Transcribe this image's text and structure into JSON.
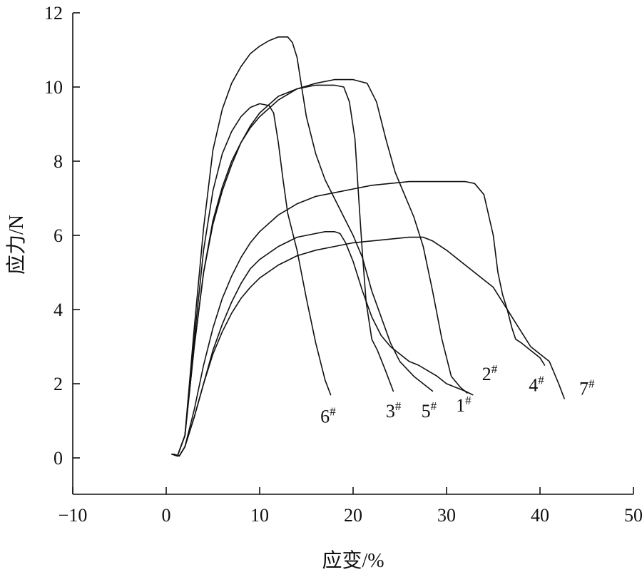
{
  "chart_data": {
    "type": "line",
    "xlabel": "应变/%",
    "ylabel": "应力/N",
    "xlim": [
      -10,
      50
    ],
    "ylim": [
      0,
      12
    ],
    "x_ticks": [
      -10,
      0,
      10,
      20,
      30,
      40,
      50
    ],
    "y_ticks": [
      0,
      2,
      4,
      6,
      8,
      10,
      12
    ],
    "x_tick_labels": [
      "−10",
      "0",
      "10",
      "20",
      "30",
      "40",
      "50"
    ],
    "y_tick_labels": [
      "0",
      "2",
      "4",
      "6",
      "8",
      "10",
      "12"
    ],
    "grid": false,
    "legend": "none",
    "line_color": "#111111",
    "series": [
      {
        "name": "6",
        "label_suffix": "#",
        "points": [
          [
            0.6,
            0.1
          ],
          [
            1.2,
            0.05
          ],
          [
            2.0,
            0.6
          ],
          [
            3.0,
            3.2
          ],
          [
            4.0,
            5.6
          ],
          [
            5.0,
            7.2
          ],
          [
            6.0,
            8.2
          ],
          [
            7.0,
            8.8
          ],
          [
            8.0,
            9.2
          ],
          [
            9.0,
            9.45
          ],
          [
            10.0,
            9.55
          ],
          [
            11.0,
            9.5
          ],
          [
            11.5,
            9.3
          ],
          [
            12.0,
            8.5
          ],
          [
            12.5,
            7.5
          ],
          [
            13.0,
            6.6
          ],
          [
            14.0,
            5.6
          ],
          [
            15.0,
            4.3
          ],
          [
            16.0,
            3.1
          ],
          [
            17.0,
            2.1
          ],
          [
            17.6,
            1.7
          ]
        ]
      },
      {
        "name": "3",
        "label_suffix": "#",
        "points": [
          [
            0.6,
            0.1
          ],
          [
            1.2,
            0.05
          ],
          [
            2.0,
            0.6
          ],
          [
            3.0,
            3.0
          ],
          [
            4.0,
            5.0
          ],
          [
            5.0,
            6.3
          ],
          [
            6.0,
            7.2
          ],
          [
            7.0,
            7.9
          ],
          [
            8.0,
            8.5
          ],
          [
            9.0,
            8.95
          ],
          [
            10.0,
            9.3
          ],
          [
            12.0,
            9.75
          ],
          [
            14.0,
            9.95
          ],
          [
            16.0,
            10.05
          ],
          [
            18.0,
            10.05
          ],
          [
            19.0,
            10.0
          ],
          [
            19.6,
            9.6
          ],
          [
            20.2,
            8.6
          ],
          [
            20.6,
            7.0
          ],
          [
            21.0,
            5.5
          ],
          [
            21.4,
            4.2
          ],
          [
            22.0,
            3.2
          ],
          [
            22.6,
            2.9
          ],
          [
            23.4,
            2.4
          ],
          [
            24.3,
            1.8
          ]
        ]
      },
      {
        "name": "5",
        "label_suffix": "#",
        "points": [
          [
            0.6,
            0.1
          ],
          [
            1.2,
            0.05
          ],
          [
            2.0,
            0.6
          ],
          [
            3.0,
            3.5
          ],
          [
            4.0,
            6.2
          ],
          [
            5.0,
            8.3
          ],
          [
            6.0,
            9.4
          ],
          [
            7.0,
            10.1
          ],
          [
            8.0,
            10.55
          ],
          [
            9.0,
            10.9
          ],
          [
            10.0,
            11.1
          ],
          [
            11.0,
            11.25
          ],
          [
            12.0,
            11.35
          ],
          [
            13.0,
            11.35
          ],
          [
            13.5,
            11.2
          ],
          [
            14.0,
            10.8
          ],
          [
            14.5,
            10.0
          ],
          [
            15.0,
            9.2
          ],
          [
            16.0,
            8.2
          ],
          [
            17.0,
            7.5
          ],
          [
            18.0,
            7.0
          ],
          [
            19.0,
            6.5
          ],
          [
            20.0,
            6.0
          ],
          [
            21.0,
            5.4
          ],
          [
            22.0,
            4.5
          ],
          [
            23.0,
            3.8
          ],
          [
            24.0,
            3.1
          ],
          [
            25.0,
            2.6
          ],
          [
            26.5,
            2.2
          ],
          [
            28.5,
            1.8
          ]
        ]
      },
      {
        "name": "1",
        "label_suffix": "#",
        "points": [
          [
            0.6,
            0.1
          ],
          [
            1.2,
            0.05
          ],
          [
            2.0,
            0.6
          ],
          [
            3.0,
            3.0
          ],
          [
            4.0,
            5.0
          ],
          [
            5.0,
            6.4
          ],
          [
            6.0,
            7.3
          ],
          [
            7.0,
            8.0
          ],
          [
            8.0,
            8.5
          ],
          [
            9.0,
            8.9
          ],
          [
            10.0,
            9.2
          ],
          [
            12.0,
            9.65
          ],
          [
            14.0,
            9.95
          ],
          [
            16.0,
            10.1
          ],
          [
            18.0,
            10.2
          ],
          [
            20.0,
            10.2
          ],
          [
            21.5,
            10.1
          ],
          [
            22.5,
            9.6
          ],
          [
            23.5,
            8.6
          ],
          [
            24.5,
            7.7
          ],
          [
            25.5,
            7.1
          ],
          [
            26.5,
            6.5
          ],
          [
            27.5,
            5.7
          ],
          [
            28.5,
            4.5
          ],
          [
            29.5,
            3.2
          ],
          [
            30.5,
            2.2
          ],
          [
            31.5,
            1.9
          ],
          [
            32.2,
            1.75
          ]
        ]
      },
      {
        "name": "2",
        "label_suffix": "#",
        "points": [
          [
            0.8,
            0.1
          ],
          [
            1.4,
            0.05
          ],
          [
            2.0,
            0.3
          ],
          [
            3.0,
            1.1
          ],
          [
            4.0,
            2.0
          ],
          [
            5.0,
            2.9
          ],
          [
            6.0,
            3.6
          ],
          [
            7.0,
            4.2
          ],
          [
            8.0,
            4.7
          ],
          [
            9.0,
            5.1
          ],
          [
            10.0,
            5.35
          ],
          [
            12.0,
            5.7
          ],
          [
            14.0,
            5.95
          ],
          [
            16.0,
            6.05
          ],
          [
            17.0,
            6.1
          ],
          [
            18.0,
            6.1
          ],
          [
            18.6,
            6.05
          ],
          [
            19.2,
            5.8
          ],
          [
            20.0,
            5.3
          ],
          [
            21.0,
            4.5
          ],
          [
            22.0,
            3.8
          ],
          [
            23.0,
            3.3
          ],
          [
            24.0,
            3.0
          ],
          [
            25.0,
            2.8
          ],
          [
            26.0,
            2.6
          ],
          [
            27.0,
            2.5
          ],
          [
            28.0,
            2.35
          ],
          [
            29.0,
            2.2
          ],
          [
            30.0,
            2.0
          ],
          [
            31.0,
            1.9
          ],
          [
            32.0,
            1.8
          ],
          [
            32.8,
            1.7
          ]
        ]
      },
      {
        "name": "4",
        "label_suffix": "#",
        "points": [
          [
            0.8,
            0.1
          ],
          [
            1.4,
            0.05
          ],
          [
            2.0,
            0.3
          ],
          [
            3.0,
            1.3
          ],
          [
            4.0,
            2.5
          ],
          [
            5.0,
            3.5
          ],
          [
            6.0,
            4.3
          ],
          [
            7.0,
            4.9
          ],
          [
            8.0,
            5.4
          ],
          [
            9.0,
            5.8
          ],
          [
            10.0,
            6.1
          ],
          [
            12.0,
            6.55
          ],
          [
            14.0,
            6.85
          ],
          [
            16.0,
            7.05
          ],
          [
            18.0,
            7.15
          ],
          [
            20.0,
            7.25
          ],
          [
            22.0,
            7.35
          ],
          [
            24.0,
            7.4
          ],
          [
            26.0,
            7.45
          ],
          [
            28.0,
            7.45
          ],
          [
            32.0,
            7.45
          ],
          [
            33.0,
            7.4
          ],
          [
            34.0,
            7.1
          ],
          [
            35.0,
            6.0
          ],
          [
            35.5,
            5.0
          ],
          [
            36.0,
            4.4
          ],
          [
            36.5,
            4.0
          ],
          [
            37.0,
            3.5
          ],
          [
            37.4,
            3.2
          ],
          [
            38.0,
            3.1
          ],
          [
            39.0,
            2.9
          ],
          [
            40.0,
            2.7
          ],
          [
            40.5,
            2.5
          ]
        ]
      },
      {
        "name": "7",
        "label_suffix": "#",
        "points": [
          [
            0.8,
            0.1
          ],
          [
            1.4,
            0.05
          ],
          [
            2.0,
            0.3
          ],
          [
            3.0,
            1.1
          ],
          [
            4.0,
            2.0
          ],
          [
            5.0,
            2.8
          ],
          [
            6.0,
            3.4
          ],
          [
            7.0,
            3.9
          ],
          [
            8.0,
            4.3
          ],
          [
            9.0,
            4.6
          ],
          [
            10.0,
            4.85
          ],
          [
            12.0,
            5.2
          ],
          [
            14.0,
            5.45
          ],
          [
            16.0,
            5.6
          ],
          [
            18.0,
            5.7
          ],
          [
            20.0,
            5.8
          ],
          [
            22.0,
            5.85
          ],
          [
            24.0,
            5.9
          ],
          [
            26.0,
            5.95
          ],
          [
            27.5,
            5.95
          ],
          [
            28.5,
            5.85
          ],
          [
            30.0,
            5.6
          ],
          [
            32.0,
            5.2
          ],
          [
            34.0,
            4.8
          ],
          [
            35.0,
            4.6
          ],
          [
            36.0,
            4.2
          ],
          [
            37.0,
            3.8
          ],
          [
            38.0,
            3.4
          ],
          [
            39.0,
            3.0
          ],
          [
            40.0,
            2.8
          ],
          [
            41.0,
            2.6
          ],
          [
            42.0,
            2.0
          ],
          [
            42.6,
            1.6
          ]
        ]
      }
    ],
    "label_positions": {
      "6": [
        16.5,
        0.95
      ],
      "3": [
        23.5,
        1.1
      ],
      "5": [
        27.3,
        1.1
      ],
      "1": [
        31.0,
        1.25
      ],
      "2": [
        33.8,
        2.1
      ],
      "4": [
        38.8,
        1.8
      ],
      "7": [
        44.2,
        1.7
      ]
    }
  }
}
